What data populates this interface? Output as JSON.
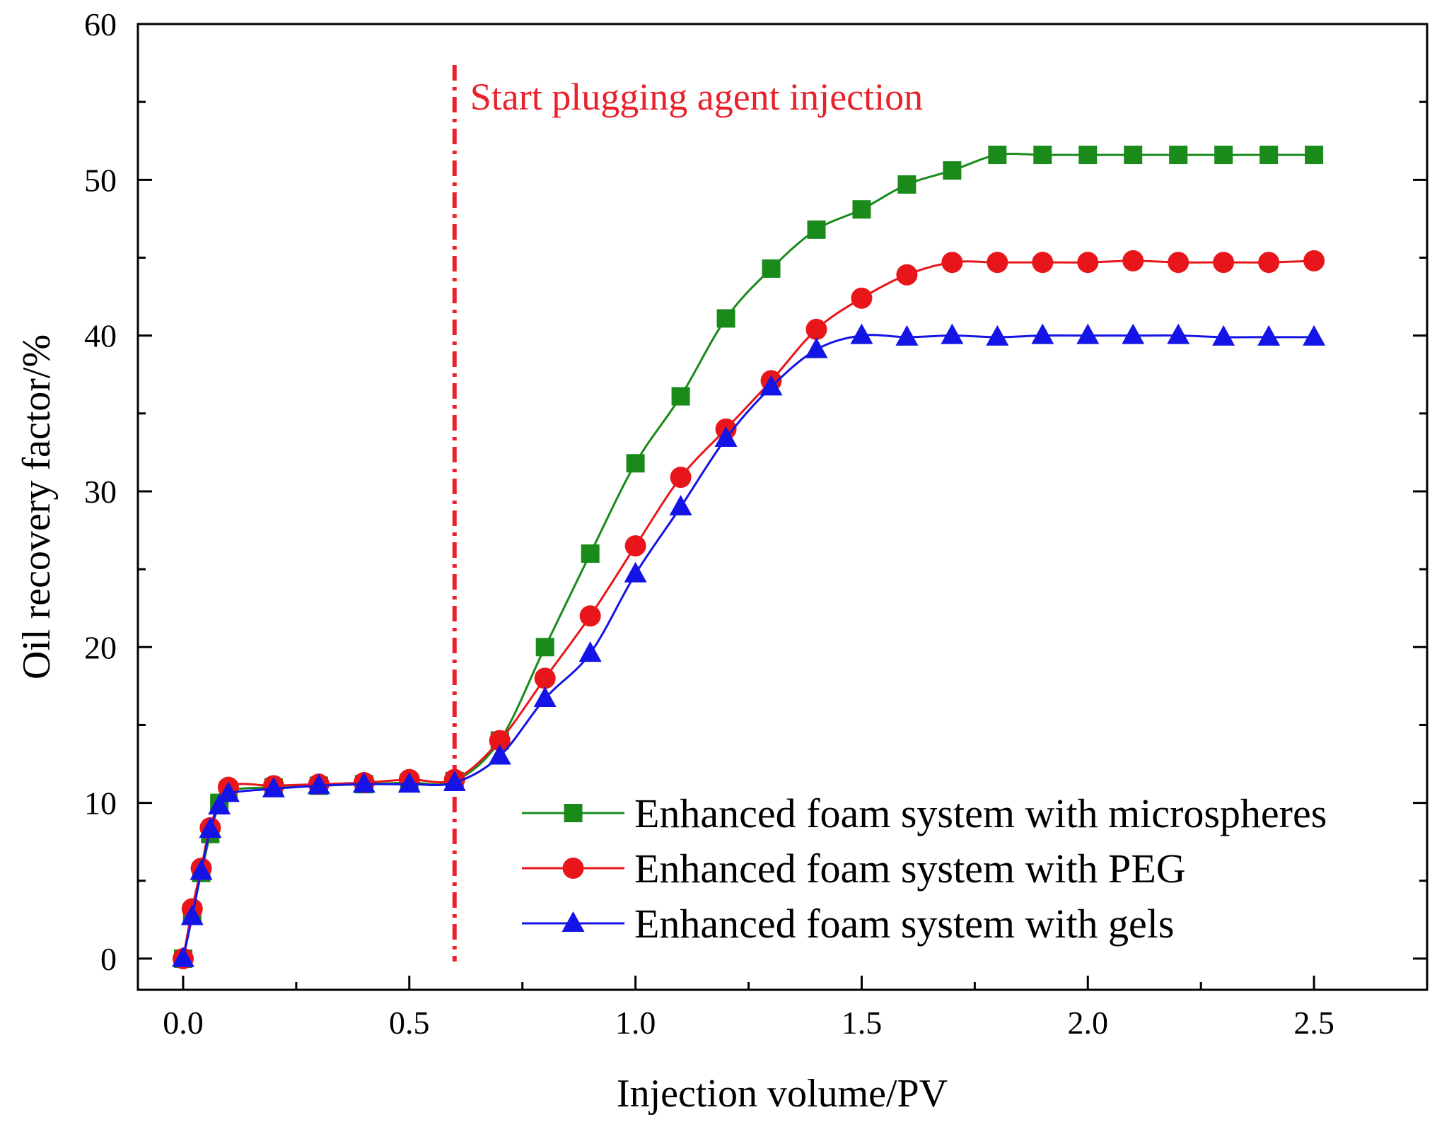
{
  "chart_data": {
    "type": "line",
    "title": "",
    "xlabel": "Injection volume/PV",
    "ylabel": "Oil recovery factor/%",
    "xlim": [
      -0.1,
      2.75
    ],
    "ylim": [
      -2,
      60
    ],
    "xticks": [
      0.0,
      0.5,
      1.0,
      1.5,
      2.0,
      2.5
    ],
    "xtick_labels": [
      "0.0",
      "0.5",
      "1.0",
      "1.5",
      "2.0",
      "2.5"
    ],
    "yticks": [
      0,
      10,
      20,
      30,
      40,
      50,
      60
    ],
    "ytick_labels": [
      "0",
      "10",
      "20",
      "30",
      "40",
      "50",
      "60"
    ],
    "legend_position": "bottom-right",
    "annotation": {
      "text": "Start plugging agent injection",
      "x": 0.6,
      "color": "#e8212a"
    },
    "series": [
      {
        "name": "Enhanced foam system with microspheres",
        "color": "#1a8a1a",
        "marker": "square",
        "x": [
          0,
          0.02,
          0.04,
          0.06,
          0.08,
          0.1,
          0.2,
          0.3,
          0.4,
          0.5,
          0.6,
          0.7,
          0.8,
          0.9,
          1.0,
          1.1,
          1.2,
          1.3,
          1.4,
          1.5,
          1.6,
          1.7,
          1.8,
          1.9,
          2.0,
          2.1,
          2.2,
          2.3,
          2.4,
          2.5
        ],
        "y": [
          0,
          3,
          5.5,
          8,
          10,
          10.8,
          11,
          11.1,
          11.2,
          11.3,
          11.4,
          14,
          20,
          26,
          31.8,
          36.1,
          41.1,
          44.3,
          46.8,
          48.1,
          49.7,
          50.6,
          51.6,
          51.6,
          51.6,
          51.6,
          51.6,
          51.6,
          51.6,
          51.6
        ]
      },
      {
        "name": "Enhanced foam system with PEG",
        "color": "#e8161b",
        "marker": "circle",
        "x": [
          0,
          0.02,
          0.04,
          0.06,
          0.1,
          0.2,
          0.3,
          0.4,
          0.5,
          0.6,
          0.7,
          0.8,
          0.9,
          1.0,
          1.1,
          1.2,
          1.3,
          1.4,
          1.5,
          1.6,
          1.7,
          1.8,
          1.9,
          2.0,
          2.1,
          2.2,
          2.3,
          2.4,
          2.5
        ],
        "y": [
          0,
          3.2,
          5.8,
          8.4,
          11,
          11.1,
          11.2,
          11.3,
          11.5,
          11.5,
          14,
          18,
          22,
          26.5,
          30.9,
          34,
          37.1,
          40.4,
          42.4,
          43.9,
          44.7,
          44.7,
          44.7,
          44.7,
          44.8,
          44.7,
          44.7,
          44.7,
          44.8
        ]
      },
      {
        "name": "Enhanced foam system with gels",
        "color": "#1414e6",
        "marker": "triangle",
        "x": [
          0,
          0.02,
          0.04,
          0.06,
          0.08,
          0.1,
          0.2,
          0.3,
          0.4,
          0.5,
          0.6,
          0.7,
          0.8,
          0.9,
          1.0,
          1.1,
          1.2,
          1.3,
          1.4,
          1.5,
          1.6,
          1.7,
          1.8,
          1.9,
          2.0,
          2.1,
          2.2,
          2.3,
          2.4,
          2.5
        ],
        "y": [
          0,
          2.7,
          5.6,
          8.3,
          9.8,
          10.6,
          10.9,
          11.1,
          11.2,
          11.2,
          11.3,
          13,
          16.7,
          19.6,
          24.7,
          29,
          33.4,
          36.7,
          39.1,
          40,
          39.9,
          40,
          39.9,
          40,
          40,
          40,
          40,
          39.9,
          39.9,
          39.9
        ]
      }
    ]
  }
}
